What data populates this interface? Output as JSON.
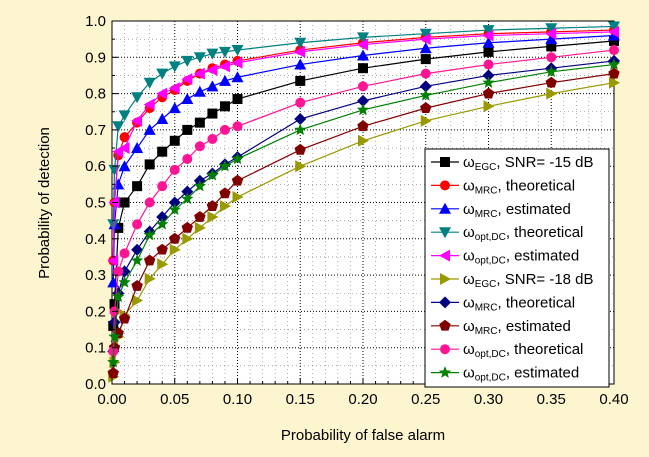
{
  "colors": {
    "background": "#fdf5d0",
    "plot_area": "#ffffff"
  },
  "chart_data": {
    "type": "line",
    "xlabel": "Probability of false alarm",
    "ylabel": "Probability of detection",
    "xlim": [
      0.0,
      0.4
    ],
    "ylim": [
      0.0,
      1.0
    ],
    "x_ticks": [
      "0.00",
      "0.05",
      "0.10",
      "0.15",
      "0.20",
      "0.25",
      "0.30",
      "0.35",
      "0.40"
    ],
    "y_ticks": [
      "0.0",
      "0.1",
      "0.2",
      "0.3",
      "0.4",
      "0.5",
      "0.6",
      "0.7",
      "0.8",
      "0.9",
      "1.0"
    ],
    "grid": "dotted major and minor",
    "legend_position": "right-inside",
    "series": [
      {
        "legend_main": "ω",
        "legend_sub": "EGC",
        "legend_tail": ", SNR= -15 dB",
        "color": "#000000",
        "marker": "square",
        "x": [
          0.001,
          0.002,
          0.005,
          0.01,
          0.02,
          0.03,
          0.04,
          0.05,
          0.06,
          0.07,
          0.08,
          0.09,
          0.1,
          0.15,
          0.2,
          0.25,
          0.3,
          0.35,
          0.4
        ],
        "y": [
          0.16,
          0.22,
          0.43,
          0.5,
          0.545,
          0.605,
          0.64,
          0.67,
          0.7,
          0.72,
          0.745,
          0.765,
          0.785,
          0.835,
          0.87,
          0.895,
          0.915,
          0.93,
          0.945
        ]
      },
      {
        "legend_main": "ω",
        "legend_sub": "MRC",
        "legend_tail": ", theoretical",
        "color": "#ff0000",
        "marker": "circle",
        "x": [
          0.001,
          0.002,
          0.005,
          0.01,
          0.02,
          0.03,
          0.04,
          0.05,
          0.06,
          0.07,
          0.08,
          0.09,
          0.1,
          0.15,
          0.2,
          0.25,
          0.3,
          0.35,
          0.4
        ],
        "y": [
          0.34,
          0.5,
          0.63,
          0.68,
          0.72,
          0.76,
          0.79,
          0.81,
          0.835,
          0.855,
          0.87,
          0.88,
          0.89,
          0.92,
          0.94,
          0.955,
          0.965,
          0.97,
          0.975
        ]
      },
      {
        "legend_main": "ω",
        "legend_sub": "MRC",
        "legend_tail": ", estimated",
        "color": "#0000ff",
        "marker": "triangle-up",
        "x": [
          0.001,
          0.002,
          0.005,
          0.01,
          0.02,
          0.03,
          0.04,
          0.05,
          0.06,
          0.07,
          0.08,
          0.09,
          0.1,
          0.15,
          0.2,
          0.25,
          0.3,
          0.35,
          0.4
        ],
        "y": [
          0.28,
          0.44,
          0.55,
          0.6,
          0.65,
          0.7,
          0.73,
          0.76,
          0.785,
          0.805,
          0.82,
          0.835,
          0.845,
          0.88,
          0.905,
          0.925,
          0.94,
          0.95,
          0.96
        ]
      },
      {
        "legend_main": "ω",
        "legend_sub": "opt,DC",
        "legend_tail": ", theoretical",
        "color": "#008080",
        "marker": "triangle-down",
        "x": [
          0.001,
          0.002,
          0.005,
          0.01,
          0.02,
          0.03,
          0.04,
          0.05,
          0.06,
          0.07,
          0.08,
          0.09,
          0.1,
          0.15,
          0.2,
          0.25,
          0.3,
          0.35,
          0.4
        ],
        "y": [
          0.44,
          0.59,
          0.71,
          0.74,
          0.79,
          0.83,
          0.855,
          0.875,
          0.89,
          0.9,
          0.91,
          0.915,
          0.92,
          0.94,
          0.955,
          0.965,
          0.975,
          0.98,
          0.985
        ]
      },
      {
        "legend_main": "ω",
        "legend_sub": "opt,DC",
        "legend_tail": ", estimated",
        "color": "#ff00ff",
        "marker": "triangle-left",
        "x": [
          0.001,
          0.002,
          0.005,
          0.01,
          0.02,
          0.03,
          0.04,
          0.05,
          0.06,
          0.07,
          0.08,
          0.09,
          0.1,
          0.15,
          0.2,
          0.25,
          0.3,
          0.35,
          0.4
        ],
        "y": [
          0.34,
          0.5,
          0.64,
          0.65,
          0.725,
          0.77,
          0.8,
          0.815,
          0.84,
          0.855,
          0.865,
          0.875,
          0.885,
          0.915,
          0.935,
          0.95,
          0.96,
          0.965,
          0.97
        ]
      },
      {
        "legend_main": "ω",
        "legend_sub": "EGC",
        "legend_tail": ", SNR= -18 dB",
        "color": "#999900",
        "marker": "triangle-right",
        "x": [
          0.001,
          0.002,
          0.005,
          0.01,
          0.02,
          0.03,
          0.04,
          0.05,
          0.06,
          0.07,
          0.08,
          0.09,
          0.1,
          0.15,
          0.2,
          0.25,
          0.3,
          0.35,
          0.4
        ],
        "y": [
          0.02,
          0.06,
          0.13,
          0.19,
          0.23,
          0.29,
          0.33,
          0.37,
          0.4,
          0.43,
          0.46,
          0.49,
          0.515,
          0.6,
          0.67,
          0.725,
          0.765,
          0.8,
          0.83
        ]
      },
      {
        "legend_main": "ω",
        "legend_sub": "MRC",
        "legend_tail": ", theoretical",
        "color": "#000080",
        "marker": "diamond",
        "x": [
          0.001,
          0.002,
          0.005,
          0.01,
          0.02,
          0.03,
          0.04,
          0.05,
          0.06,
          0.07,
          0.08,
          0.09,
          0.1,
          0.15,
          0.2,
          0.25,
          0.3,
          0.35,
          0.4
        ],
        "y": [
          0.09,
          0.17,
          0.25,
          0.31,
          0.37,
          0.42,
          0.46,
          0.5,
          0.53,
          0.56,
          0.58,
          0.605,
          0.625,
          0.73,
          0.78,
          0.82,
          0.85,
          0.87,
          0.89
        ]
      },
      {
        "legend_main": "ω",
        "legend_sub": "MRC",
        "legend_tail": ", estimated",
        "color": "#800000",
        "marker": "pentagon",
        "x": [
          0.001,
          0.002,
          0.005,
          0.01,
          0.02,
          0.03,
          0.04,
          0.05,
          0.06,
          0.07,
          0.08,
          0.09,
          0.1,
          0.15,
          0.2,
          0.25,
          0.3,
          0.35,
          0.4
        ],
        "y": [
          0.03,
          0.1,
          0.14,
          0.18,
          0.27,
          0.34,
          0.37,
          0.4,
          0.43,
          0.46,
          0.49,
          0.525,
          0.56,
          0.645,
          0.71,
          0.76,
          0.8,
          0.83,
          0.855
        ]
      },
      {
        "legend_main": "ω",
        "legend_sub": "opt,DC",
        "legend_tail": ", theoretical",
        "color": "#ff1493",
        "marker": "circle",
        "x": [
          0.001,
          0.002,
          0.005,
          0.01,
          0.02,
          0.03,
          0.04,
          0.05,
          0.06,
          0.07,
          0.08,
          0.09,
          0.1,
          0.15,
          0.2,
          0.25,
          0.3,
          0.35,
          0.4
        ],
        "y": [
          0.09,
          0.2,
          0.31,
          0.36,
          0.44,
          0.5,
          0.545,
          0.59,
          0.62,
          0.655,
          0.675,
          0.7,
          0.71,
          0.775,
          0.82,
          0.855,
          0.88,
          0.9,
          0.92
        ]
      },
      {
        "legend_main": "ω",
        "legend_sub": "opt,DC",
        "legend_tail": ", estimated",
        "color": "#008000",
        "marker": "star",
        "x": [
          0.001,
          0.002,
          0.005,
          0.01,
          0.02,
          0.03,
          0.04,
          0.05,
          0.06,
          0.07,
          0.08,
          0.09,
          0.1,
          0.15,
          0.2,
          0.25,
          0.3,
          0.35,
          0.4
        ],
        "y": [
          0.06,
          0.13,
          0.24,
          0.28,
          0.34,
          0.41,
          0.44,
          0.48,
          0.51,
          0.545,
          0.575,
          0.6,
          0.62,
          0.7,
          0.755,
          0.795,
          0.83,
          0.86,
          0.88
        ]
      }
    ]
  }
}
